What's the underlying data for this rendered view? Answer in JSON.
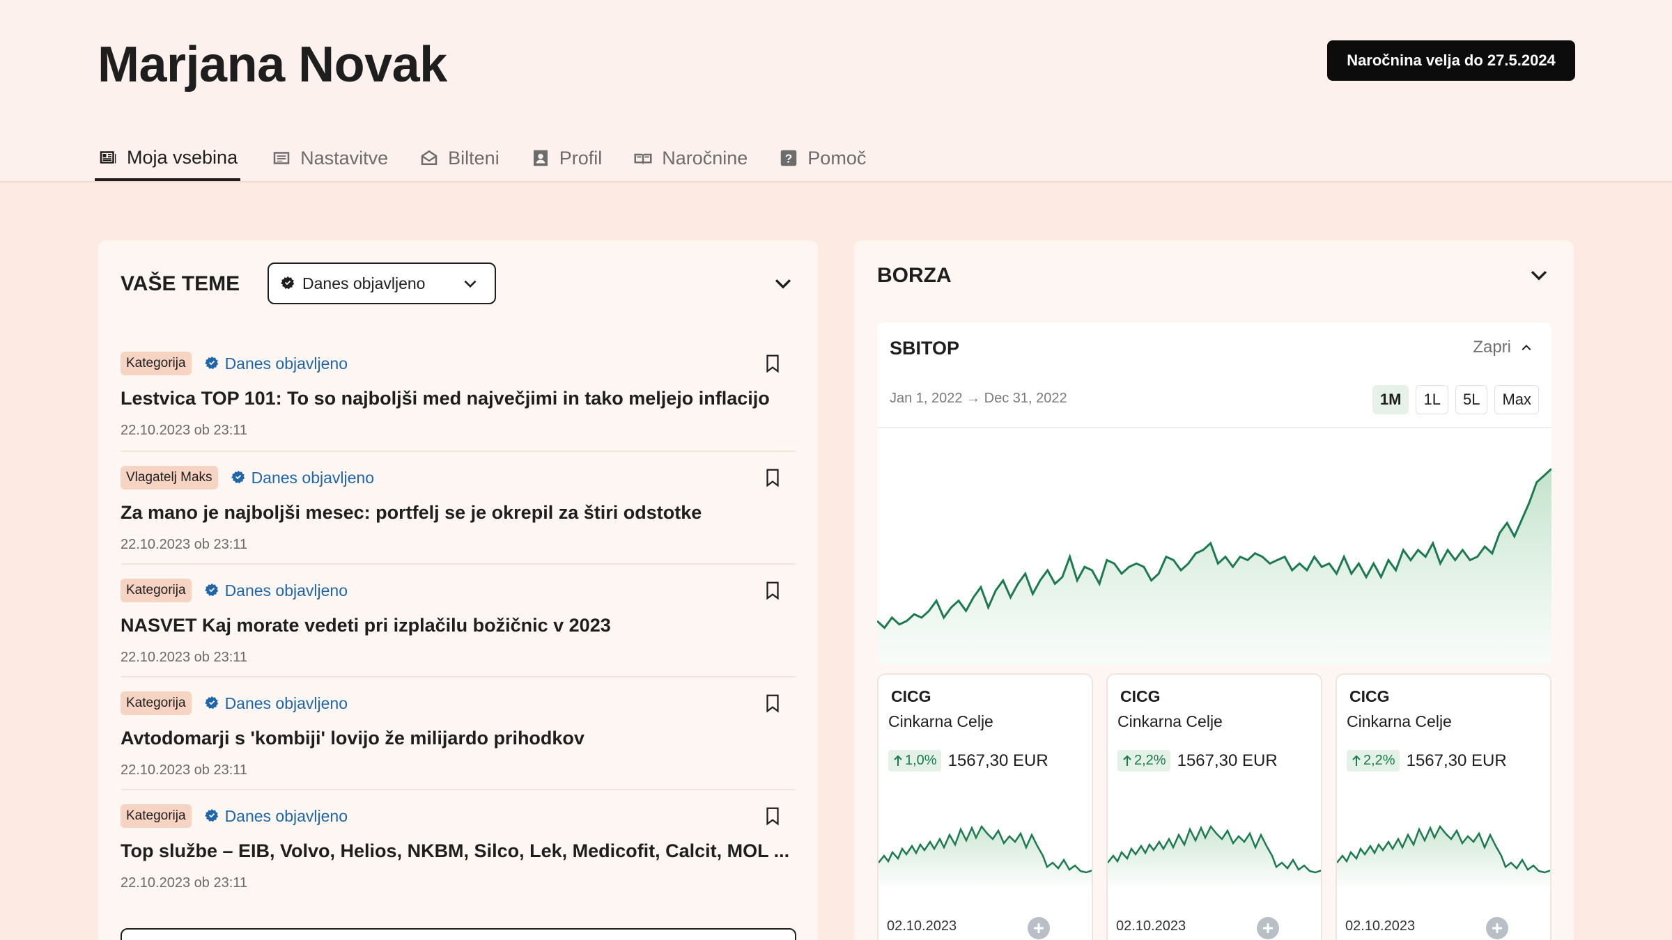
{
  "header": {
    "user_name": "Marjana Novak",
    "subscription_badge": "Naročnina velja do 27.5.2024"
  },
  "tabs": [
    {
      "label": "Moja vsebina",
      "icon": "newspaper-icon",
      "active": true
    },
    {
      "label": "Nastavitve",
      "icon": "settings-list-icon",
      "active": false
    },
    {
      "label": "Bilteni",
      "icon": "open-envelope-icon",
      "active": false
    },
    {
      "label": "Profil",
      "icon": "profile-icon",
      "active": false
    },
    {
      "label": "Naročnine",
      "icon": "subscription-icon",
      "active": false
    },
    {
      "label": "Pomoč",
      "icon": "help-icon",
      "active": false
    }
  ],
  "topics": {
    "title": "VAŠE TEME",
    "filter_selected": "Danes objavljeno",
    "articles": [
      {
        "category": "Kategorija",
        "status": "Danes objavljeno",
        "title": "Lestvica TOP 101: To so najboljši med največjimi in tako meljejo inflacijo",
        "date": "22.10.2023 ob 23:11"
      },
      {
        "category": "Vlagatelj Maks",
        "status": "Danes objavljeno",
        "title": "Za mano je najboljši mesec: portfelj se je okrepil za štiri odstotke",
        "date": "22.10.2023 ob 23:11"
      },
      {
        "category": "Kategorija",
        "status": "Danes objavljeno",
        "title": "NASVET Kaj morate vedeti pri izplačilu božičnic v 2023",
        "date": "22.10.2023 ob 23:11"
      },
      {
        "category": "Kategorija",
        "status": "Danes objavljeno",
        "title": "Avtodomarji s 'kombiji' lovijo že milijardo prihodkov",
        "date": "22.10.2023 ob 23:11"
      },
      {
        "category": "Kategorija",
        "status": "Danes objavljeno",
        "title": "Top službe – EIB, Volvo, Helios, NKBM, Silco, Lek, Medicofit, Calcit, MOL ...",
        "date": "22.10.2023 ob 23:11"
      }
    ]
  },
  "market": {
    "title": "BORZA",
    "index_name": "SBITOP",
    "close_label": "Zapri",
    "date_range": "Jan 1, 2022 → Dec 31, 2022",
    "periods": [
      {
        "label": "1M",
        "selected": true
      },
      {
        "label": "1L",
        "selected": false
      },
      {
        "label": "5L",
        "selected": false
      },
      {
        "label": "Max",
        "selected": false
      }
    ],
    "stocks": [
      {
        "ticker": "CICG",
        "company": "Cinkarna Celje",
        "change": "1,0%",
        "direction": "up",
        "price": "1567,30 EUR",
        "date": "02.10.2023"
      },
      {
        "ticker": "CICG",
        "company": "Cinkarna Celje",
        "change": "2,2%",
        "direction": "up",
        "price": "1567,30 EUR",
        "date": "02.10.2023"
      },
      {
        "ticker": "CICG",
        "company": "Cinkarna Celje",
        "change": "2,2%",
        "direction": "up",
        "price": "1567,30 EUR",
        "date": "02.10.2023"
      }
    ]
  },
  "colors": {
    "accent_green": "#1d7a50",
    "link_blue": "#1e66a8",
    "tag_peach": "#f6d3c3",
    "page_bg": "#fdebe3"
  },
  "chart_data": {
    "type": "area",
    "x": [
      0,
      4,
      8,
      12,
      16,
      20,
      24,
      28,
      32,
      36,
      40,
      44,
      48,
      52,
      56,
      60,
      64,
      68,
      72,
      76,
      80,
      84,
      88,
      92,
      96,
      100,
      104,
      108,
      112,
      116,
      120,
      124,
      128,
      132,
      136,
      140,
      144,
      148,
      152,
      156,
      160,
      164,
      168,
      172,
      176,
      180,
      184,
      188,
      192,
      196,
      200,
      204,
      208,
      212,
      216,
      220,
      224,
      228,
      232,
      236,
      240,
      244,
      248,
      252,
      256,
      260,
      264,
      268,
      272,
      276,
      280,
      284,
      288,
      292,
      296,
      300,
      304,
      308,
      312,
      316,
      320,
      324,
      328,
      332,
      336,
      340,
      344,
      348,
      352,
      356,
      360,
      364
    ],
    "values": [
      43,
      41,
      44,
      42,
      43,
      45,
      44,
      46,
      49,
      44,
      47,
      49,
      46,
      50,
      53,
      47,
      52,
      55,
      50,
      54,
      57,
      51,
      55,
      58,
      54,
      56,
      62,
      55,
      59,
      58,
      54,
      61,
      60,
      57,
      59,
      60,
      59,
      55,
      57,
      62,
      61,
      58,
      60,
      63,
      64,
      66,
      60,
      62,
      59,
      62,
      61,
      63,
      62,
      60,
      61,
      62,
      58,
      60,
      58,
      62,
      59,
      60,
      57,
      62,
      57,
      60,
      56,
      60,
      56,
      61,
      58,
      64,
      61,
      64,
      62,
      66,
      60,
      64,
      61,
      64,
      61,
      62,
      65,
      63,
      69,
      72,
      68,
      73,
      78,
      84,
      86,
      88
    ]
  }
}
